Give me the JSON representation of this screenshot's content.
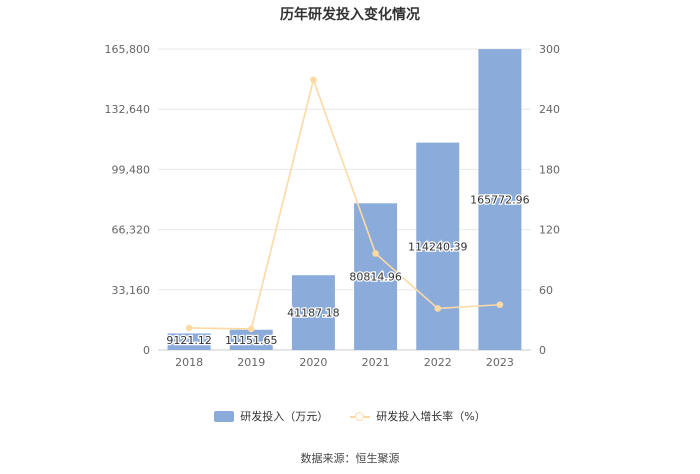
{
  "title": "历年研发投入变化情况",
  "source": "数据来源：恒生聚源",
  "colors": {
    "bar": "#8bacdb",
    "line": "#fdd9a4",
    "grid": "#e8e8e8",
    "axis_text": "#666666"
  },
  "chart_data": {
    "type": "bar",
    "title": "历年研发投入变化情况",
    "categories": [
      "2018",
      "2019",
      "2020",
      "2021",
      "2022",
      "2023"
    ],
    "series": [
      {
        "name": "研发投入（万元）",
        "type": "bar",
        "axis": "left",
        "values": [
          9121.12,
          11151.65,
          41187.18,
          80814.96,
          114240.39,
          165772.96
        ],
        "labels": [
          "9121.12",
          "11151.65",
          "41187.18",
          "80814.96",
          "114240.39",
          "165772.96"
        ]
      },
      {
        "name": "研发投入增长率（%）",
        "type": "line",
        "axis": "right",
        "values": [
          22,
          21,
          269.3,
          96.2,
          41.4,
          45.1
        ]
      }
    ],
    "y_left": {
      "min": 0,
      "max": 165800,
      "ticks": [
        0,
        33160,
        66320,
        99480,
        132640,
        165800
      ],
      "tick_labels": [
        "0",
        "33,160",
        "66,320",
        "99,480",
        "132,640",
        "165,800"
      ]
    },
    "y_right": {
      "min": 0,
      "max": 300,
      "ticks": [
        0,
        60,
        120,
        180,
        240,
        300
      ],
      "tick_labels": [
        "0",
        "60",
        "120",
        "180",
        "240",
        "300"
      ]
    },
    "grid": true,
    "legend": "bottom"
  }
}
